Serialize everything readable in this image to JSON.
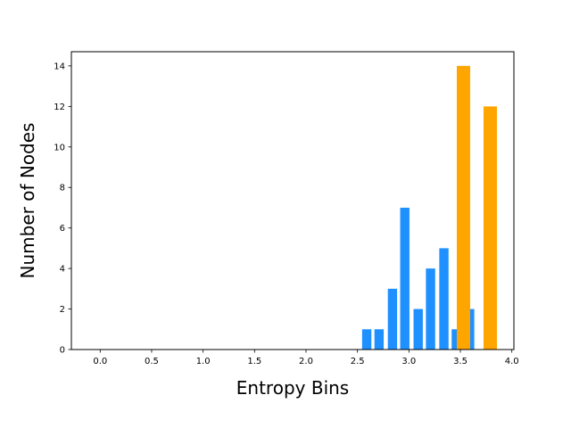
{
  "chart_data": {
    "type": "bar",
    "xlabel": "Entropy Bins",
    "ylabel": "Number of Nodes",
    "xlim": [
      -0.28,
      4.02
    ],
    "ylim": [
      0,
      14.7
    ],
    "xticks": [
      0.0,
      0.5,
      1.0,
      1.5,
      2.0,
      2.5,
      3.0,
      3.5,
      4.0
    ],
    "xtick_labels": [
      "0.0",
      "0.5",
      "1.0",
      "1.5",
      "2.0",
      "2.5",
      "3.0",
      "3.5",
      "4.0"
    ],
    "yticks": [
      0,
      2,
      4,
      6,
      8,
      10,
      12,
      14
    ],
    "ytick_labels": [
      "0",
      "2",
      "4",
      "6",
      "8",
      "10",
      "12",
      "14"
    ],
    "grid": false,
    "series": [
      {
        "color": "#1e90ff",
        "bar_width": 0.09,
        "x": [
          2.59,
          2.71,
          2.84,
          2.96,
          3.09,
          3.21,
          3.34,
          3.46,
          3.59
        ],
        "values": [
          1,
          1,
          3,
          7,
          2,
          4,
          5,
          1,
          2
        ]
      },
      {
        "color": "#ffa500",
        "bar_width": 0.13,
        "x": [
          3.53,
          3.79
        ],
        "values": [
          14,
          12
        ]
      }
    ]
  }
}
